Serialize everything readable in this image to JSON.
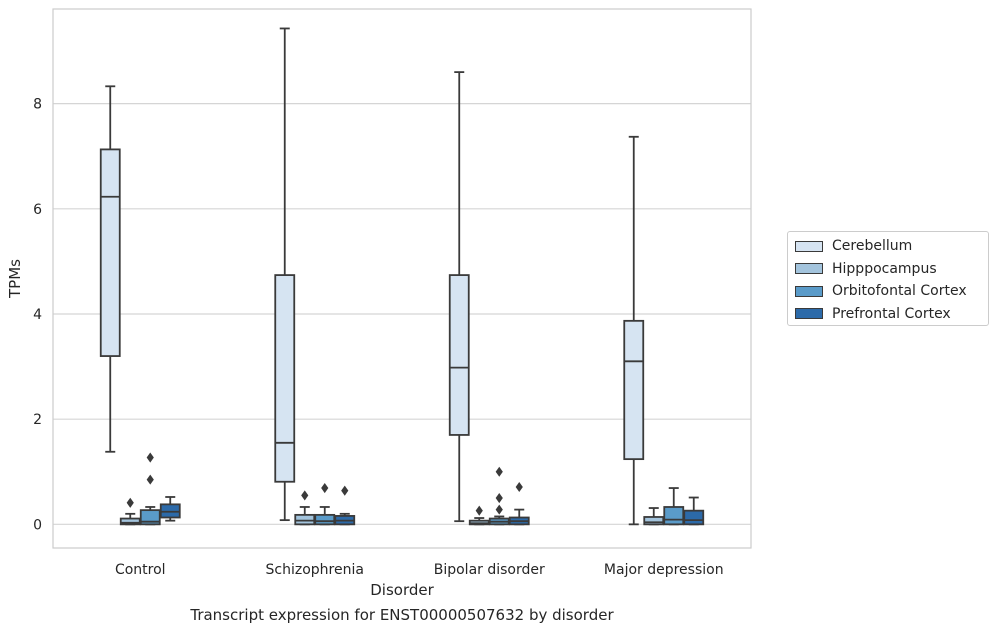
{
  "caption": "Transcript expression for ENST00000507632 by disorder",
  "chart_data": {
    "type": "box",
    "xlabel": "Disorder",
    "ylabel": "TPMs",
    "ylim": [
      -0.45,
      9.8
    ],
    "yticks": [
      0,
      2,
      4,
      6,
      8
    ],
    "grid": true,
    "legend_placement": "right",
    "categories": [
      "Control",
      "Schizophrenia",
      "Bipolar disorder",
      "Major depression"
    ],
    "series": [
      {
        "name": "Cerebellum",
        "color": "#d6e4f2",
        "boxes": [
          {
            "q1": 3.2,
            "median": 6.23,
            "q3": 7.13,
            "whisker_low": 1.38,
            "whisker_high": 8.33,
            "outliers": []
          },
          {
            "q1": 0.81,
            "median": 1.55,
            "q3": 4.74,
            "whisker_low": 0.08,
            "whisker_high": 9.43,
            "outliers": []
          },
          {
            "q1": 1.7,
            "median": 2.98,
            "q3": 4.74,
            "whisker_low": 0.06,
            "whisker_high": 8.6,
            "outliers": []
          },
          {
            "q1": 1.24,
            "median": 3.1,
            "q3": 3.87,
            "whisker_low": 0.0,
            "whisker_high": 7.37,
            "outliers": []
          }
        ]
      },
      {
        "name": "Hipppocampus",
        "color": "#a3c4dd",
        "boxes": [
          {
            "q1": 0.0,
            "median": 0.03,
            "q3": 0.11,
            "whisker_low": 0.0,
            "whisker_high": 0.2,
            "outliers": [
              0.41
            ]
          },
          {
            "q1": 0.0,
            "median": 0.07,
            "q3": 0.18,
            "whisker_low": 0.0,
            "whisker_high": 0.33,
            "outliers": [
              0.55
            ]
          },
          {
            "q1": 0.0,
            "median": 0.02,
            "q3": 0.07,
            "whisker_low": 0.0,
            "whisker_high": 0.12,
            "outliers": [
              0.26
            ]
          },
          {
            "q1": 0.0,
            "median": 0.04,
            "q3": 0.14,
            "whisker_low": 0.0,
            "whisker_high": 0.31,
            "outliers": []
          }
        ]
      },
      {
        "name": "Orbitofontal Cortex",
        "color": "#5a9bc9",
        "boxes": [
          {
            "q1": 0.0,
            "median": 0.05,
            "q3": 0.27,
            "whisker_low": 0.0,
            "whisker_high": 0.33,
            "outliers": [
              0.85,
              1.27
            ]
          },
          {
            "q1": 0.0,
            "median": 0.06,
            "q3": 0.18,
            "whisker_low": 0.0,
            "whisker_high": 0.33,
            "outliers": [
              0.69
            ]
          },
          {
            "q1": 0.0,
            "median": 0.05,
            "q3": 0.11,
            "whisker_low": 0.0,
            "whisker_high": 0.15,
            "outliers": [
              0.28,
              0.5,
              1.0
            ]
          },
          {
            "q1": 0.0,
            "median": 0.09,
            "q3": 0.33,
            "whisker_low": 0.0,
            "whisker_high": 0.69,
            "outliers": []
          }
        ]
      },
      {
        "name": "Prefrontal Cortex",
        "color": "#2c6aa9",
        "boxes": [
          {
            "q1": 0.13,
            "median": 0.24,
            "q3": 0.38,
            "whisker_low": 0.07,
            "whisker_high": 0.52,
            "outliers": []
          },
          {
            "q1": 0.0,
            "median": 0.07,
            "q3": 0.16,
            "whisker_low": 0.0,
            "whisker_high": 0.2,
            "outliers": [
              0.64
            ]
          },
          {
            "q1": 0.0,
            "median": 0.06,
            "q3": 0.13,
            "whisker_low": 0.0,
            "whisker_high": 0.28,
            "outliers": [
              0.71
            ]
          },
          {
            "q1": 0.0,
            "median": 0.08,
            "q3": 0.26,
            "whisker_low": 0.0,
            "whisker_high": 0.51,
            "outliers": []
          }
        ]
      }
    ]
  }
}
